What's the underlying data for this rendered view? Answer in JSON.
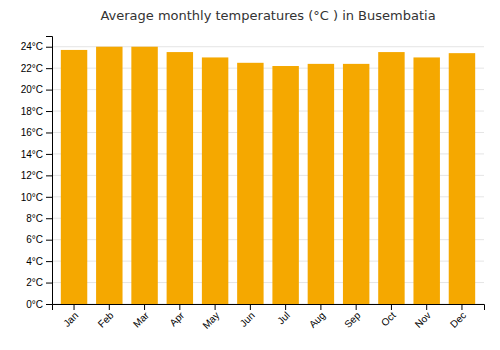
{
  "chart_data": {
    "type": "bar",
    "title": "Average monthly temperatures (°C ) in Busembatia",
    "categories": [
      "Jan",
      "Feb",
      "Mar",
      "Apr",
      "May",
      "Jun",
      "Jul",
      "Aug",
      "Sep",
      "Oct",
      "Nov",
      "Dec"
    ],
    "values": [
      23.7,
      24.0,
      24.0,
      23.5,
      23.0,
      22.5,
      22.2,
      22.4,
      22.4,
      23.5,
      23.0,
      23.4
    ],
    "color": "#F5A800",
    "ylim": [
      0,
      25
    ],
    "yticks": [
      {
        "value": 0,
        "label": "0°C"
      },
      {
        "value": 2,
        "label": "2°C"
      },
      {
        "value": 4,
        "label": "4°C"
      },
      {
        "value": 6,
        "label": "6°C"
      },
      {
        "value": 8,
        "label": "8°C"
      },
      {
        "value": 10,
        "label": "10°C"
      },
      {
        "value": 12,
        "label": "12°C"
      },
      {
        "value": 14,
        "label": "14°C"
      },
      {
        "value": 16,
        "label": "16°C"
      },
      {
        "value": 18,
        "label": "18°C"
      },
      {
        "value": 20,
        "label": "20°C"
      },
      {
        "value": 22,
        "label": "22°C"
      },
      {
        "value": 24,
        "label": "24°C"
      }
    ],
    "grid": true
  }
}
